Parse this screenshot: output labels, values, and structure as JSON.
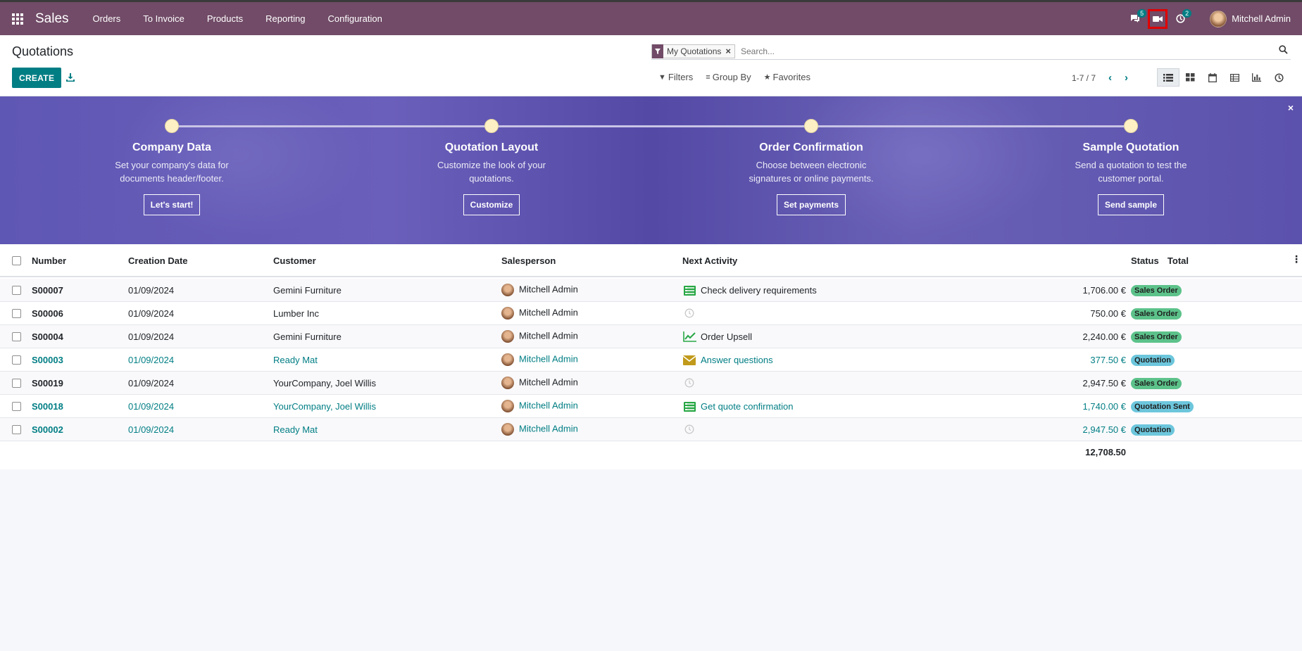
{
  "navbar": {
    "brand": "Sales",
    "menu": [
      "Orders",
      "To Invoice",
      "Products",
      "Reporting",
      "Configuration"
    ],
    "messages_badge": "5",
    "activities_badge": "2",
    "user_name": "Mitchell Admin"
  },
  "control_panel": {
    "title": "Quotations",
    "create_label": "CREATE",
    "facet_label": "My Quotations",
    "search_placeholder": "Search...",
    "filters_label": "Filters",
    "groupby_label": "Group By",
    "favorites_label": "Favorites",
    "pager": "1-7 / 7"
  },
  "onboarding": {
    "steps": [
      {
        "title": "Company Data",
        "desc": "Set your company's data for documents header/footer.",
        "button": "Let's start!"
      },
      {
        "title": "Quotation Layout",
        "desc": "Customize the look of your quotations.",
        "button": "Customize"
      },
      {
        "title": "Order Confirmation",
        "desc": "Choose between electronic signatures or online payments.",
        "button": "Set payments"
      },
      {
        "title": "Sample Quotation",
        "desc": "Send a quotation to test the customer portal.",
        "button": "Send sample"
      }
    ]
  },
  "table": {
    "headers": {
      "number": "Number",
      "creation_date": "Creation Date",
      "customer": "Customer",
      "salesperson": "Salesperson",
      "next_activity": "Next Activity",
      "total": "Total",
      "status": "Status"
    },
    "rows": [
      {
        "number": "S00007",
        "date": "01/09/2024",
        "customer": "Gemini Furniture",
        "salesperson": "Mitchell Admin",
        "activity": "Check delivery requirements",
        "activity_icon": "todo-icon",
        "total": "1,706.00 €",
        "status": "Sales Order"
      },
      {
        "number": "S00006",
        "date": "01/09/2024",
        "customer": "Lumber Inc",
        "salesperson": "Mitchell Admin",
        "activity": "",
        "activity_icon": "clock-icon",
        "total": "750.00 €",
        "status": "Sales Order"
      },
      {
        "number": "S00004",
        "date": "01/09/2024",
        "customer": "Gemini Furniture",
        "salesperson": "Mitchell Admin",
        "activity": "Order Upsell",
        "activity_icon": "chart-line-icon",
        "total": "2,240.00 €",
        "status": "Sales Order"
      },
      {
        "number": "S00003",
        "date": "01/09/2024",
        "customer": "Ready Mat",
        "salesperson": "Mitchell Admin",
        "activity": "Answer questions",
        "activity_icon": "envelope-icon",
        "total": "377.50 €",
        "status": "Quotation"
      },
      {
        "number": "S00019",
        "date": "01/09/2024",
        "customer": "YourCompany, Joel Willis",
        "salesperson": "Mitchell Admin",
        "activity": "",
        "activity_icon": "clock-icon",
        "total": "2,947.50 €",
        "status": "Sales Order"
      },
      {
        "number": "S00018",
        "date": "01/09/2024",
        "customer": "YourCompany, Joel Willis",
        "salesperson": "Mitchell Admin",
        "activity": "Get quote confirmation",
        "activity_icon": "todo-icon",
        "total": "1,740.00 €",
        "status": "Quotation Sent"
      },
      {
        "number": "S00002",
        "date": "01/09/2024",
        "customer": "Ready Mat",
        "salesperson": "Mitchell Admin",
        "activity": "",
        "activity_icon": "clock-icon",
        "total": "2,947.50 €",
        "status": "Quotation"
      }
    ],
    "grand_total": "12,708.50"
  },
  "colors": {
    "navbar": "#714b67",
    "primary": "#017e84",
    "banner": "#5f57b4",
    "status_green": "#5cc28a",
    "status_blue": "#6cc6dc"
  }
}
